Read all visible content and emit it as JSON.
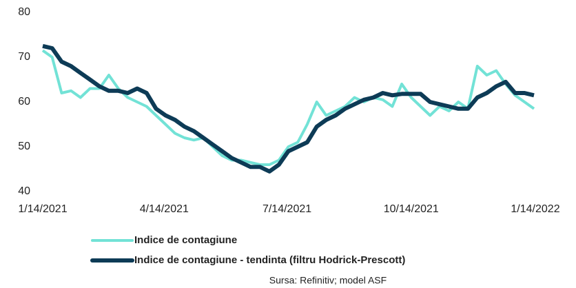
{
  "chart_data": {
    "type": "line",
    "x": [
      "1/14/2021",
      "1/21/2021",
      "1/28/2021",
      "2/4/2021",
      "2/11/2021",
      "2/18/2021",
      "2/25/2021",
      "3/4/2021",
      "3/11/2021",
      "3/18/2021",
      "3/25/2021",
      "4/1/2021",
      "4/8/2021",
      "4/15/2021",
      "4/22/2021",
      "4/29/2021",
      "5/6/2021",
      "5/13/2021",
      "5/20/2021",
      "5/27/2021",
      "6/3/2021",
      "6/10/2021",
      "6/17/2021",
      "6/24/2021",
      "7/1/2021",
      "7/8/2021",
      "7/15/2021",
      "7/22/2021",
      "7/29/2021",
      "8/5/2021",
      "8/12/2021",
      "8/19/2021",
      "8/26/2021",
      "9/2/2021",
      "9/9/2021",
      "9/16/2021",
      "9/23/2021",
      "9/30/2021",
      "10/7/2021",
      "10/14/2021",
      "10/21/2021",
      "10/28/2021",
      "11/4/2021",
      "11/11/2021",
      "11/18/2021",
      "11/25/2021",
      "12/2/2021",
      "12/9/2021",
      "12/16/2021",
      "12/23/2021",
      "12/30/2021",
      "1/6/2022",
      "1/13/2022"
    ],
    "series": [
      {
        "name": "Indice de contagiune",
        "color": "#72e2d6",
        "values": [
          71.5,
          70,
          62,
          62.5,
          61,
          63,
          63,
          66,
          63,
          61,
          60,
          59,
          57,
          55,
          53,
          52,
          51.5,
          52,
          50,
          48,
          47,
          47,
          46.5,
          46,
          46,
          47,
          50,
          51,
          55,
          60,
          57,
          58,
          59,
          61,
          60,
          61,
          60.5,
          59,
          64,
          61,
          59,
          57,
          59,
          58,
          60,
          58.5,
          68,
          66,
          67,
          64,
          61.5,
          60,
          58.5
        ]
      },
      {
        "name": "Indice de contagiune - tendinta (filtru Hodrick-Prescott)",
        "color": "#0d3b56",
        "values": [
          72.5,
          72,
          69,
          68,
          66.5,
          65,
          63.5,
          62.5,
          62.5,
          62,
          63,
          62,
          58.5,
          57,
          56,
          54.5,
          53.5,
          52,
          50.5,
          49,
          47.5,
          46.5,
          45.5,
          45.5,
          44.5,
          46,
          49,
          50,
          51,
          54.5,
          56,
          57,
          58.5,
          59.5,
          60.5,
          61,
          62,
          61.5,
          61.8,
          61.8,
          61.8,
          60,
          59.5,
          59,
          58.5,
          58.5,
          61,
          62,
          63.5,
          64.5,
          62,
          62,
          61.5
        ]
      }
    ],
    "xlim": [
      "1/14/2021",
      "1/14/2022"
    ],
    "xticks": [
      "1/14/2021",
      "4/14/2021",
      "7/14/2021",
      "10/14/2021",
      "1/14/2022"
    ],
    "ylim": [
      40,
      80
    ],
    "yticks": [
      40,
      50,
      60,
      70,
      80
    ],
    "grid": false,
    "source": "Sursa: Refinitiv; model ASF"
  }
}
